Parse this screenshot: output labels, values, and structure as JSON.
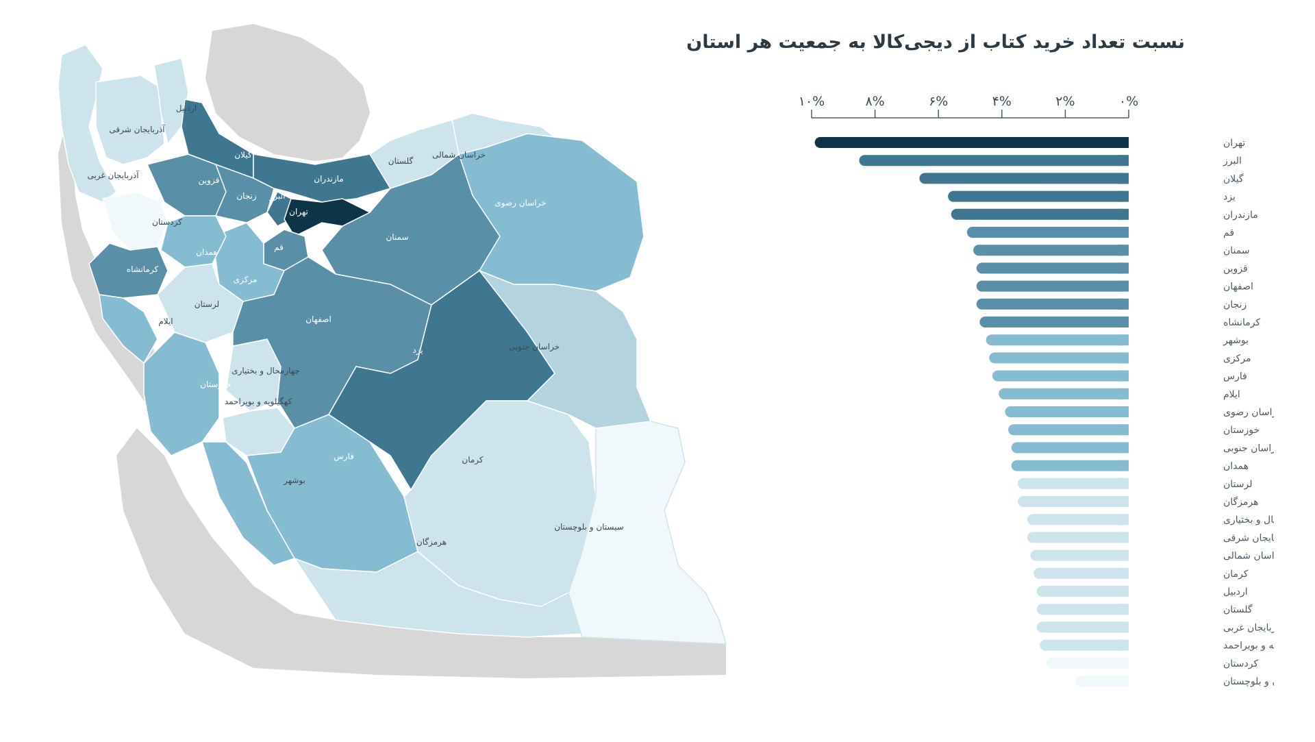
{
  "title": "نسبت تعداد خرید کتاب از دیجی‌کالا به جمعیت هر استان",
  "colors": {
    "background": "#ffffff",
    "neighbors": "#d7d7d7",
    "sea": "#ffffff",
    "scale": [
      "#f1f8fb",
      "#cde4ec",
      "#86bcd1",
      "#5a8fa8",
      "#3f7790",
      "#0e3547"
    ]
  },
  "map_labels": [
    {
      "name": "تهران"
    },
    {
      "name": "البرز"
    },
    {
      "name": "گیلان"
    },
    {
      "name": "مازندران"
    },
    {
      "name": "قزوین"
    },
    {
      "name": "زنجان"
    },
    {
      "name": "قم"
    },
    {
      "name": "سمنان"
    },
    {
      "name": "اصفهان"
    },
    {
      "name": "یزد"
    },
    {
      "name": "کرمانشاه"
    },
    {
      "name": "همدان"
    },
    {
      "name": "مرکزی"
    },
    {
      "name": "لرستان"
    },
    {
      "name": "ایلام"
    },
    {
      "name": "خوزستان"
    },
    {
      "name": "چهارمحال و بختیاری"
    },
    {
      "name": "کهگیلویه و بویراحمد"
    },
    {
      "name": "بوشهر"
    },
    {
      "name": "فارس"
    },
    {
      "name": "کرمان"
    },
    {
      "name": "هرمزگان"
    },
    {
      "name": "سیستان و بلوچستان"
    },
    {
      "name": "خراسان جنوبی"
    },
    {
      "name": "خراسان رضوی"
    },
    {
      "name": "خراسان شمالی"
    },
    {
      "name": "گلستان"
    },
    {
      "name": "کردستان"
    },
    {
      "name": "آذربایجان غربی"
    },
    {
      "name": "آذربایجان شرقی"
    },
    {
      "name": "اردبیل"
    }
  ],
  "chart_data": {
    "type": "bar",
    "orientation": "horizontal",
    "title": "نسبت تعداد خرید کتاب از دیجی‌کالا به جمعیت هر استان",
    "xlim": [
      0,
      10
    ],
    "x_ticks": [
      0,
      2,
      4,
      6,
      8,
      10
    ],
    "x_tick_labels": [
      "۰%",
      "۲%",
      "۴%",
      "۶%",
      "۸%",
      "۱۰%"
    ],
    "categories": [
      "تهران",
      "البرز",
      "گیلان",
      "یزد",
      "مازندران",
      "قم",
      "سمنان",
      "قزوین",
      "اصفهان",
      "زنجان",
      "کرمانشاه",
      "بوشهر",
      "مرکزی",
      "فارس",
      "ایلام",
      "خراسان رضوی",
      "خوزستان",
      "خراسان جنوبی",
      "همدان",
      "لرستان",
      "هرمزگان",
      "چهار محال و بختیاری",
      "آذربایجان شرقی",
      "خراسان شمالی",
      "کرمان",
      "اردبیل",
      "گلستان",
      "آذربایجان غربی",
      "کهگیلویه و بویراحمد",
      "کردستان",
      "سیستان و بلوچستان"
    ],
    "values": [
      9.9,
      8.5,
      6.6,
      5.7,
      5.6,
      5.1,
      4.9,
      4.8,
      4.8,
      4.8,
      4.7,
      4.5,
      4.4,
      4.3,
      4.1,
      3.9,
      3.8,
      3.7,
      3.7,
      3.5,
      3.5,
      3.2,
      3.2,
      3.1,
      3.0,
      2.9,
      2.9,
      2.9,
      2.8,
      2.6,
      1.7
    ],
    "bar_colors": [
      "#0e3547",
      "#3f7790",
      "#3f7790",
      "#3f7790",
      "#3f7790",
      "#5a8fa8",
      "#5a8fa8",
      "#5a8fa8",
      "#5a8fa8",
      "#5a8fa8",
      "#5a8fa8",
      "#86bcd1",
      "#86bcd1",
      "#86bcd1",
      "#86bcd1",
      "#86bcd1",
      "#86bcd1",
      "#86bcd1",
      "#86bcd1",
      "#cde4ec",
      "#cde4ec",
      "#cde4ec",
      "#cde4ec",
      "#cde4ec",
      "#cde4ec",
      "#cde4ec",
      "#cde4ec",
      "#cde4ec",
      "#cde4ec",
      "#f1f8fb",
      "#f1f8fb"
    ]
  }
}
